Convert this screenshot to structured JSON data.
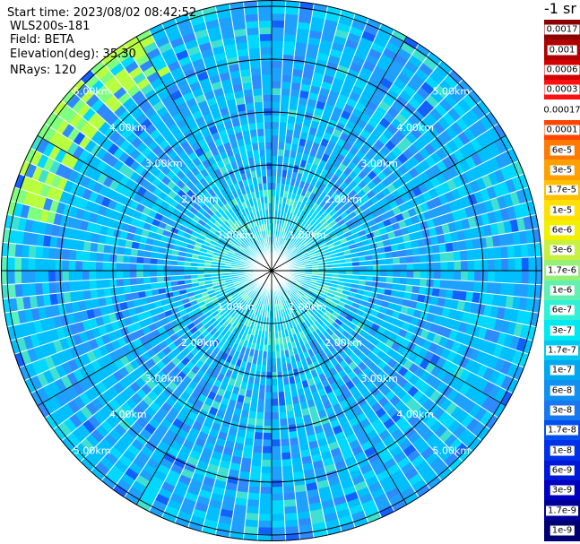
{
  "info": {
    "start_time": "Start time: 2023/08/02 08:42:52",
    "station": "WLS200s-181",
    "field": "Field: BETA",
    "elevation": "Elevation(deg): 35.30",
    "nrays": "NRays: 120"
  },
  "colorbar": {
    "unit": "-1 sr",
    "labels": [
      "0.0017",
      "0.001",
      "0.0006",
      "0.0003",
      "0.00017",
      "0.0001",
      "6e-5",
      "3e-5",
      "1.7e-5",
      "1e-5",
      "6e-6",
      "3e-6",
      "1.7e-6",
      "1e-6",
      "6e-7",
      "3e-7",
      "1.7e-7",
      "1e-7",
      "6e-8",
      "3e-8",
      "1.7e-8",
      "1e-8",
      "6e-9",
      "3e-9",
      "1.7e-9",
      "1e-9"
    ],
    "colors": [
      "#8b0000",
      "#b00000",
      "#d40000",
      "#ff1010",
      "#ffffff",
      "#ff4500",
      "#ff7a00",
      "#ff9f00",
      "#ffc000",
      "#ffe000",
      "#f0f000",
      "#c8f040",
      "#96f078",
      "#60f0b0",
      "#30f0d8",
      "#00e8f0",
      "#00c8f0",
      "#00a8f0",
      "#1090f0",
      "#1878f0",
      "#0050f0",
      "#0030e8",
      "#0018d8",
      "#0000c0",
      "#000098",
      "#000070"
    ]
  },
  "rings": {
    "labels": [
      "1.00km",
      "2.00km",
      "3.00km",
      "4.00km",
      "5.00km"
    ]
  },
  "palette": [
    "#00d8ff",
    "#00bfff",
    "#1ea0ff",
    "#2e8bff",
    "#40e0d0",
    "#5af0c0",
    "#7fff7f",
    "#b8ff40",
    "#e8ff20",
    "#1260ff"
  ]
}
